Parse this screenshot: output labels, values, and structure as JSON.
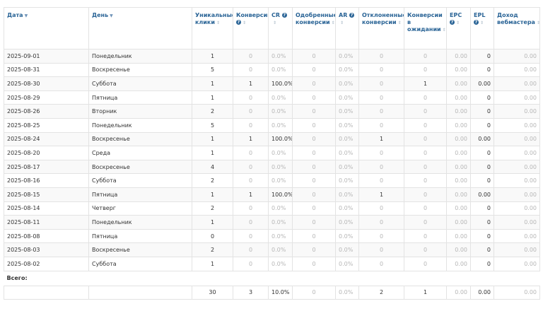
{
  "headers": [
    {
      "label": "Дата",
      "sort": "▼",
      "help": false
    },
    {
      "label": "День",
      "sort": "▼",
      "help": false
    },
    {
      "label": "Уникальные клики",
      "sort": "⇕",
      "help": false
    },
    {
      "label": "Конверсии",
      "sort": "⇕",
      "help": true
    },
    {
      "label": "CR",
      "sort": "⇕",
      "help": true
    },
    {
      "label": "Одобренные конверсии",
      "sort": "⇕",
      "help": false
    },
    {
      "label": "AR",
      "sort": "⇕",
      "help": true
    },
    {
      "label": "Отклоненные конверсии",
      "sort": "⇕",
      "help": false
    },
    {
      "label": "Конверсии в ожидании",
      "sort": "⇕",
      "help": false
    },
    {
      "label": "EPC",
      "sort": "⇕",
      "help": true
    },
    {
      "label": "EPL",
      "sort": "⇕",
      "help": true
    },
    {
      "label": "Доход вебмастера",
      "sort": "⇕",
      "help": false
    }
  ],
  "rows": [
    {
      "date": "2025-09-01",
      "day": "Понедельник",
      "clicks": "1",
      "conv": "0",
      "cr": "0.0%",
      "approved": "0",
      "ar": "0.0%",
      "rejected": "0",
      "pending": "0",
      "epc": "0.00",
      "epl": "0",
      "income": "0.00"
    },
    {
      "date": "2025-08-31",
      "day": "Воскресенье",
      "clicks": "5",
      "conv": "0",
      "cr": "0.0%",
      "approved": "0",
      "ar": "0.0%",
      "rejected": "0",
      "pending": "0",
      "epc": "0.00",
      "epl": "0",
      "income": "0.00"
    },
    {
      "date": "2025-08-30",
      "day": "Суббота",
      "clicks": "1",
      "conv": "1",
      "cr": "100.0%",
      "approved": "0",
      "ar": "0.0%",
      "rejected": "0",
      "pending": "1",
      "epc": "0.00",
      "epl": "0.00",
      "income": "0.00"
    },
    {
      "date": "2025-08-29",
      "day": "Пятница",
      "clicks": "1",
      "conv": "0",
      "cr": "0.0%",
      "approved": "0",
      "ar": "0.0%",
      "rejected": "0",
      "pending": "0",
      "epc": "0.00",
      "epl": "0",
      "income": "0.00"
    },
    {
      "date": "2025-08-26",
      "day": "Вторник",
      "clicks": "2",
      "conv": "0",
      "cr": "0.0%",
      "approved": "0",
      "ar": "0.0%",
      "rejected": "0",
      "pending": "0",
      "epc": "0.00",
      "epl": "0",
      "income": "0.00"
    },
    {
      "date": "2025-08-25",
      "day": "Понедельник",
      "clicks": "5",
      "conv": "0",
      "cr": "0.0%",
      "approved": "0",
      "ar": "0.0%",
      "rejected": "0",
      "pending": "0",
      "epc": "0.00",
      "epl": "0",
      "income": "0.00"
    },
    {
      "date": "2025-08-24",
      "day": "Воскресенье",
      "clicks": "1",
      "conv": "1",
      "cr": "100.0%",
      "approved": "0",
      "ar": "0.0%",
      "rejected": "1",
      "pending": "0",
      "epc": "0.00",
      "epl": "0.00",
      "income": "0.00"
    },
    {
      "date": "2025-08-20",
      "day": "Среда",
      "clicks": "1",
      "conv": "0",
      "cr": "0.0%",
      "approved": "0",
      "ar": "0.0%",
      "rejected": "0",
      "pending": "0",
      "epc": "0.00",
      "epl": "0",
      "income": "0.00"
    },
    {
      "date": "2025-08-17",
      "day": "Воскресенье",
      "clicks": "4",
      "conv": "0",
      "cr": "0.0%",
      "approved": "0",
      "ar": "0.0%",
      "rejected": "0",
      "pending": "0",
      "epc": "0.00",
      "epl": "0",
      "income": "0.00"
    },
    {
      "date": "2025-08-16",
      "day": "Суббота",
      "clicks": "2",
      "conv": "0",
      "cr": "0.0%",
      "approved": "0",
      "ar": "0.0%",
      "rejected": "0",
      "pending": "0",
      "epc": "0.00",
      "epl": "0",
      "income": "0.00"
    },
    {
      "date": "2025-08-15",
      "day": "Пятница",
      "clicks": "1",
      "conv": "1",
      "cr": "100.0%",
      "approved": "0",
      "ar": "0.0%",
      "rejected": "1",
      "pending": "0",
      "epc": "0.00",
      "epl": "0.00",
      "income": "0.00"
    },
    {
      "date": "2025-08-14",
      "day": "Четверг",
      "clicks": "2",
      "conv": "0",
      "cr": "0.0%",
      "approved": "0",
      "ar": "0.0%",
      "rejected": "0",
      "pending": "0",
      "epc": "0.00",
      "epl": "0",
      "income": "0.00"
    },
    {
      "date": "2025-08-11",
      "day": "Понедельник",
      "clicks": "1",
      "conv": "0",
      "cr": "0.0%",
      "approved": "0",
      "ar": "0.0%",
      "rejected": "0",
      "pending": "0",
      "epc": "0.00",
      "epl": "0",
      "income": "0.00"
    },
    {
      "date": "2025-08-08",
      "day": "Пятница",
      "clicks": "0",
      "conv": "0",
      "cr": "0.0%",
      "approved": "0",
      "ar": "0.0%",
      "rejected": "0",
      "pending": "0",
      "epc": "0.00",
      "epl": "0",
      "income": "0.00"
    },
    {
      "date": "2025-08-03",
      "day": "Воскресенье",
      "clicks": "2",
      "conv": "0",
      "cr": "0.0%",
      "approved": "0",
      "ar": "0.0%",
      "rejected": "0",
      "pending": "0",
      "epc": "0.00",
      "epl": "0",
      "income": "0.00"
    },
    {
      "date": "2025-08-02",
      "day": "Суббота",
      "clicks": "1",
      "conv": "0",
      "cr": "0.0%",
      "approved": "0",
      "ar": "0.0%",
      "rejected": "0",
      "pending": "0",
      "epc": "0.00",
      "epl": "0",
      "income": "0.00"
    }
  ],
  "total": {
    "label": "Всего:",
    "clicks": "30",
    "conv": "3",
    "cr": "10.0%",
    "approved": "0",
    "ar": "0.0%",
    "rejected": "2",
    "pending": "1",
    "epc": "0.00",
    "epl": "0.00",
    "income": "0.00"
  },
  "help_glyph": "?"
}
